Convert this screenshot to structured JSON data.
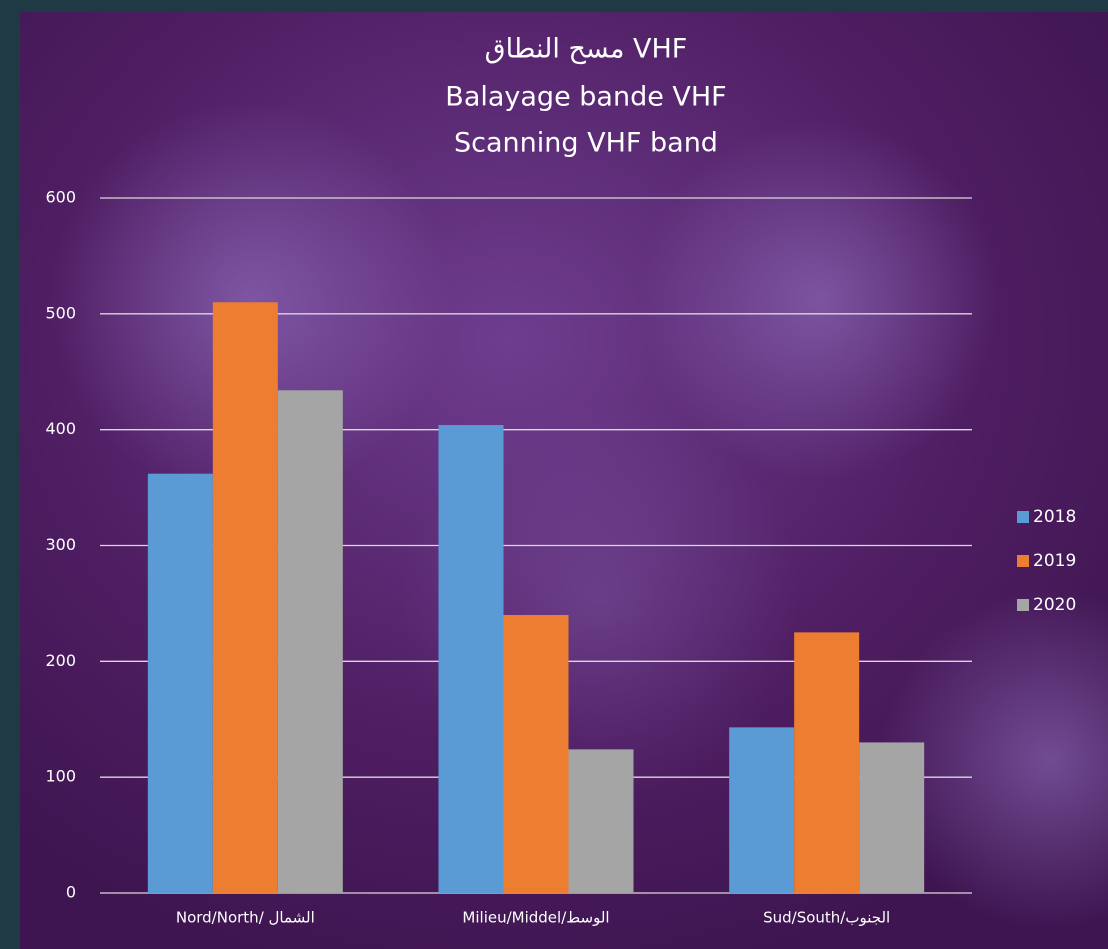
{
  "chart_data": {
    "type": "bar",
    "title": [
      "مسح النطاق VHF",
      "Balayage bande VHF",
      "Scanning VHF band"
    ],
    "categories": [
      "Nord/North/ الشمال",
      "Milieu/Middel/الوسط",
      "Sud/South/الجنوب"
    ],
    "series": [
      {
        "name": "2018",
        "color": "#5b9bd5",
        "values": [
          362,
          404,
          143
        ]
      },
      {
        "name": "2019",
        "color": "#ed7d31",
        "values": [
          510,
          240,
          225
        ]
      },
      {
        "name": "2020",
        "color": "#a5a5a5",
        "values": [
          434,
          124,
          130
        ]
      }
    ],
    "ylim": [
      0,
      600
    ],
    "yticks": [
      0,
      100,
      200,
      300,
      400,
      500,
      600
    ],
    "grid": true,
    "legend": "right"
  }
}
